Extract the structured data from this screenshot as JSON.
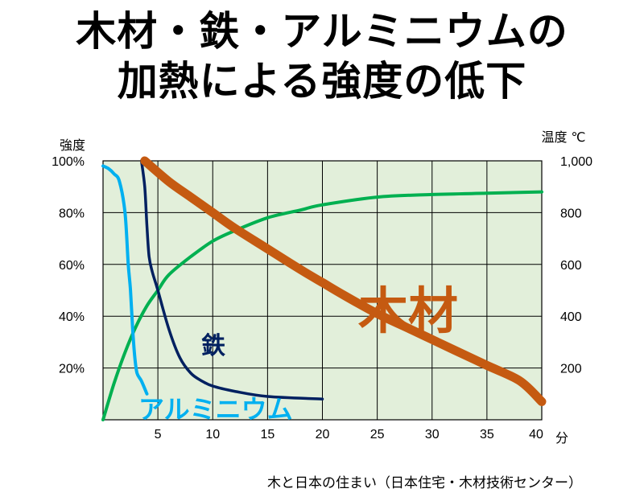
{
  "title_line1": "木材・鉄・アルミニウムの",
  "title_line2": "加熱による強度の低下",
  "caption": "木と日本の住まい（日本住宅・木材技術センター）",
  "colors": {
    "plot_bg": "#e2efda",
    "grid": "#000000",
    "wood": "#c55a11",
    "iron": "#002060",
    "aluminium": "#00b0f0",
    "temperature": "#00b050"
  },
  "chart_data": {
    "type": "line",
    "xlabel": "分",
    "ylabel_left": "強度",
    "ylabel_right": "温度 ℃",
    "xlim": [
      0,
      40
    ],
    "ylim_left": [
      0,
      100
    ],
    "ylim_right": [
      0,
      1000
    ],
    "x_ticks": [
      "5",
      "10",
      "15",
      "20",
      "25",
      "30",
      "35",
      "40"
    ],
    "y_left_ticks": [
      "20%",
      "40%",
      "60%",
      "80%",
      "100%"
    ],
    "y_right_ticks": [
      "200",
      "400",
      "600",
      "800",
      "1,000"
    ],
    "grid": true,
    "series": [
      {
        "name": "木材",
        "axis": "left",
        "x": [
          3.8,
          6,
          8,
          10,
          12,
          15,
          18,
          20,
          22,
          25,
          28,
          30,
          32,
          35,
          38,
          40
        ],
        "y": [
          100,
          92,
          86,
          80,
          74,
          66,
          58,
          53,
          48,
          41,
          35,
          31,
          27,
          21,
          15,
          7
        ]
      },
      {
        "name": "鉄",
        "axis": "left",
        "x": [
          3.5,
          3.8,
          4.0,
          4.2,
          4.5,
          5,
          6,
          7,
          8,
          9,
          10,
          12,
          15,
          20
        ],
        "y": [
          100,
          90,
          75,
          63,
          57,
          50,
          35,
          24,
          18,
          15,
          13,
          11,
          9,
          8
        ]
      },
      {
        "name": "アルミニウム",
        "axis": "left",
        "x": [
          0,
          0.5,
          1,
          1.5,
          2.0,
          2.3,
          2.5,
          2.7,
          2.9,
          3.1,
          3.5,
          4.0
        ],
        "y": [
          98,
          97,
          95,
          92,
          80,
          60,
          50,
          35,
          24,
          18,
          15,
          10
        ]
      },
      {
        "name": "",
        "axis": "right",
        "x": [
          0,
          1,
          2,
          3,
          4,
          5,
          6,
          8,
          10,
          12,
          15,
          18,
          20,
          25,
          30,
          35,
          40
        ],
        "y": [
          0,
          140,
          260,
          360,
          440,
          500,
          560,
          630,
          690,
          730,
          780,
          810,
          830,
          860,
          870,
          875,
          880
        ]
      }
    ],
    "series_labels": {
      "wood": "木材",
      "iron": "鉄",
      "aluminium": "アルミニウム"
    }
  }
}
